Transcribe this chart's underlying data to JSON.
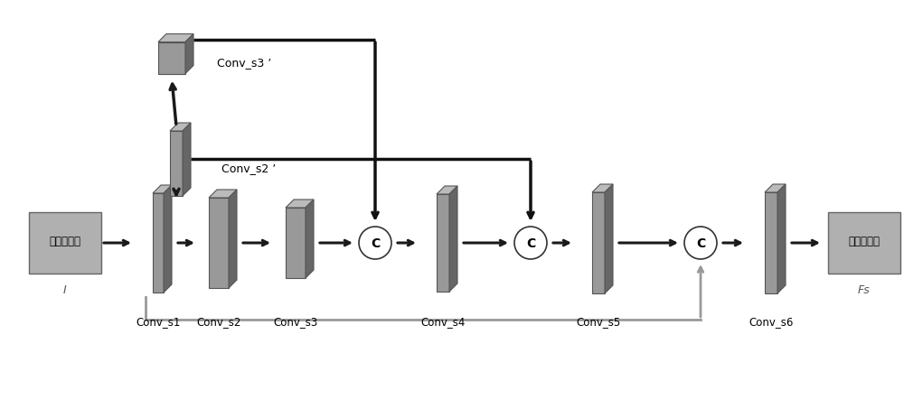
{
  "bg_color": "#ffffff",
  "gray_face": "#aaaaaa",
  "gray_side": "#888888",
  "gray_top": "#cccccc",
  "gray_box": "#b0b0b0",
  "arrow_dark": "#1a1a1a",
  "skip_dark": "#111111",
  "bottom_arrow_color": "#999999",
  "input_label": "降道扫描图",
  "input_sublabel": "I",
  "output_label": "结构特征图",
  "output_sublabel": "Fs",
  "conv_labels_bottom": [
    "Conv_s1",
    "Conv_s2",
    "Conv_s3",
    "Conv_s4",
    "Conv_s5",
    "Conv_s6"
  ],
  "conv_label_top2": "Conv_s2 ’",
  "conv_label_top3": "Conv_s3 ’",
  "concat_label": "C"
}
